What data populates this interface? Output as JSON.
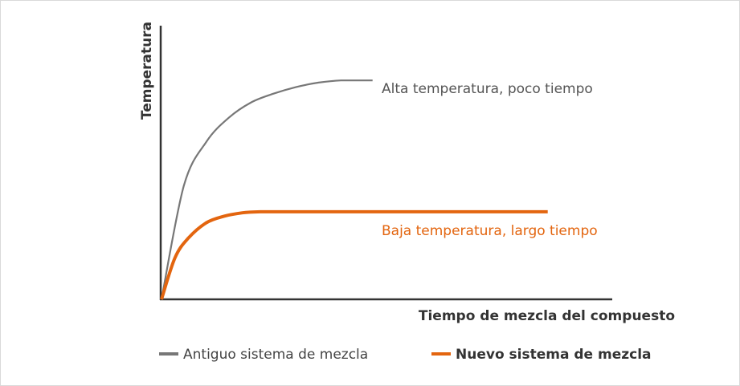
{
  "chart_data": {
    "type": "line",
    "ylabel": "Temperatura",
    "xlabel": "Tiempo de mezcla del compuesto",
    "series": [
      {
        "name": "Antiguo sistema de mezcla",
        "color": "#777777",
        "annotation": "Alta temperatura, poco tiempo",
        "annotation_color": "#555555",
        "x": [
          0,
          5,
          10,
          15,
          20,
          25,
          30,
          35,
          40,
          47
        ],
        "y": [
          0,
          52,
          72,
          83,
          90,
          94,
          97,
          99,
          100,
          100
        ],
        "end_x": 47
      },
      {
        "name": "Nuevo sistema de mezcla",
        "color": "#E3650F",
        "annotation": "Baja temperatura, largo tiempo",
        "annotation_color": "#E3650F",
        "x": [
          0,
          3,
          6,
          10,
          14,
          18,
          22,
          26,
          30,
          86
        ],
        "y": [
          0,
          19,
          28,
          35,
          38,
          39.5,
          40,
          40,
          40,
          40
        ],
        "end_x": 86
      }
    ],
    "xlim": [
      0,
      100
    ],
    "ylim": [
      0,
      125
    ],
    "grid": false,
    "legend_position": "bottom"
  }
}
